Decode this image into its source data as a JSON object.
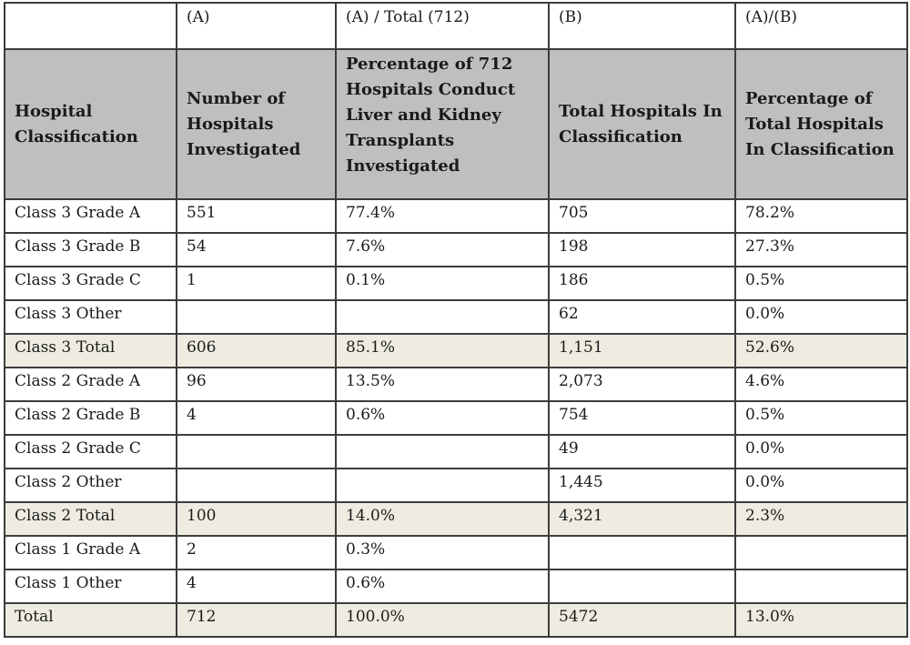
{
  "column_codes": [
    "",
    "(A)",
    "(A) / Total (712)",
    "(B)",
    "(A)/(B)"
  ],
  "headers": [
    "Hospital Classification",
    "Number of Hospitals Investigated",
    "Percentage of 712 Hospitals Conduct Liver and Kidney Transplants Investigated",
    "Total Hospitals In Classification",
    "Percentage of Total Hospitals In Classification"
  ],
  "rows": [
    {
      "classification": "Class 3 Grade A",
      "investigated": "551",
      "pct_of_712": "77.4%",
      "total_in_class": "705",
      "pct_of_class": "78.2%"
    },
    {
      "classification": "Class 3 Grade B",
      "investigated": "54",
      "pct_of_712": "7.6%",
      "total_in_class": "198",
      "pct_of_class": "27.3%"
    },
    {
      "classification": "Class 3 Grade C",
      "investigated": "1",
      "pct_of_712": "0.1%",
      "total_in_class": "186",
      "pct_of_class": "0.5%"
    },
    {
      "classification": "Class 3 Other",
      "investigated": "",
      "pct_of_712": "",
      "total_in_class": "62",
      "pct_of_class": "0.0%"
    },
    {
      "classification": "Class 3 Total",
      "investigated": "606",
      "pct_of_712": "85.1%",
      "total_in_class": "1,151",
      "pct_of_class": "52.6%",
      "is_total": true
    },
    {
      "classification": "Class 2 Grade A",
      "investigated": "96",
      "pct_of_712": "13.5%",
      "total_in_class": "2,073",
      "pct_of_class": "4.6%"
    },
    {
      "classification": "Class 2 Grade B",
      "investigated": "4",
      "pct_of_712": "0.6%",
      "total_in_class": "754",
      "pct_of_class": "0.5%"
    },
    {
      "classification": "Class 2 Grade C",
      "investigated": "",
      "pct_of_712": "",
      "total_in_class": "49",
      "pct_of_class": "0.0%"
    },
    {
      "classification": "Class 2 Other",
      "investigated": "",
      "pct_of_712": "",
      "total_in_class": "1,445",
      "pct_of_class": "0.0%"
    },
    {
      "classification": "Class 2 Total",
      "investigated": "100",
      "pct_of_712": "14.0%",
      "total_in_class": "4,321",
      "pct_of_class": "2.3%",
      "is_total": true
    },
    {
      "classification": "Class 1 Grade A",
      "investigated": "2",
      "pct_of_712": "0.3%",
      "total_in_class": "",
      "pct_of_class": ""
    },
    {
      "classification": "Class 1 Other",
      "investigated": "4",
      "pct_of_712": "0.6%",
      "total_in_class": "",
      "pct_of_class": ""
    },
    {
      "classification": "Total",
      "investigated": "712",
      "pct_of_712": "100.0%",
      "total_in_class": "5472",
      "pct_of_class": "13.0%",
      "is_total": true
    }
  ],
  "colors": {
    "header_fill": "#bfbfbf",
    "total_row_fill": "#eeece1",
    "border": "#3c3c3c"
  }
}
